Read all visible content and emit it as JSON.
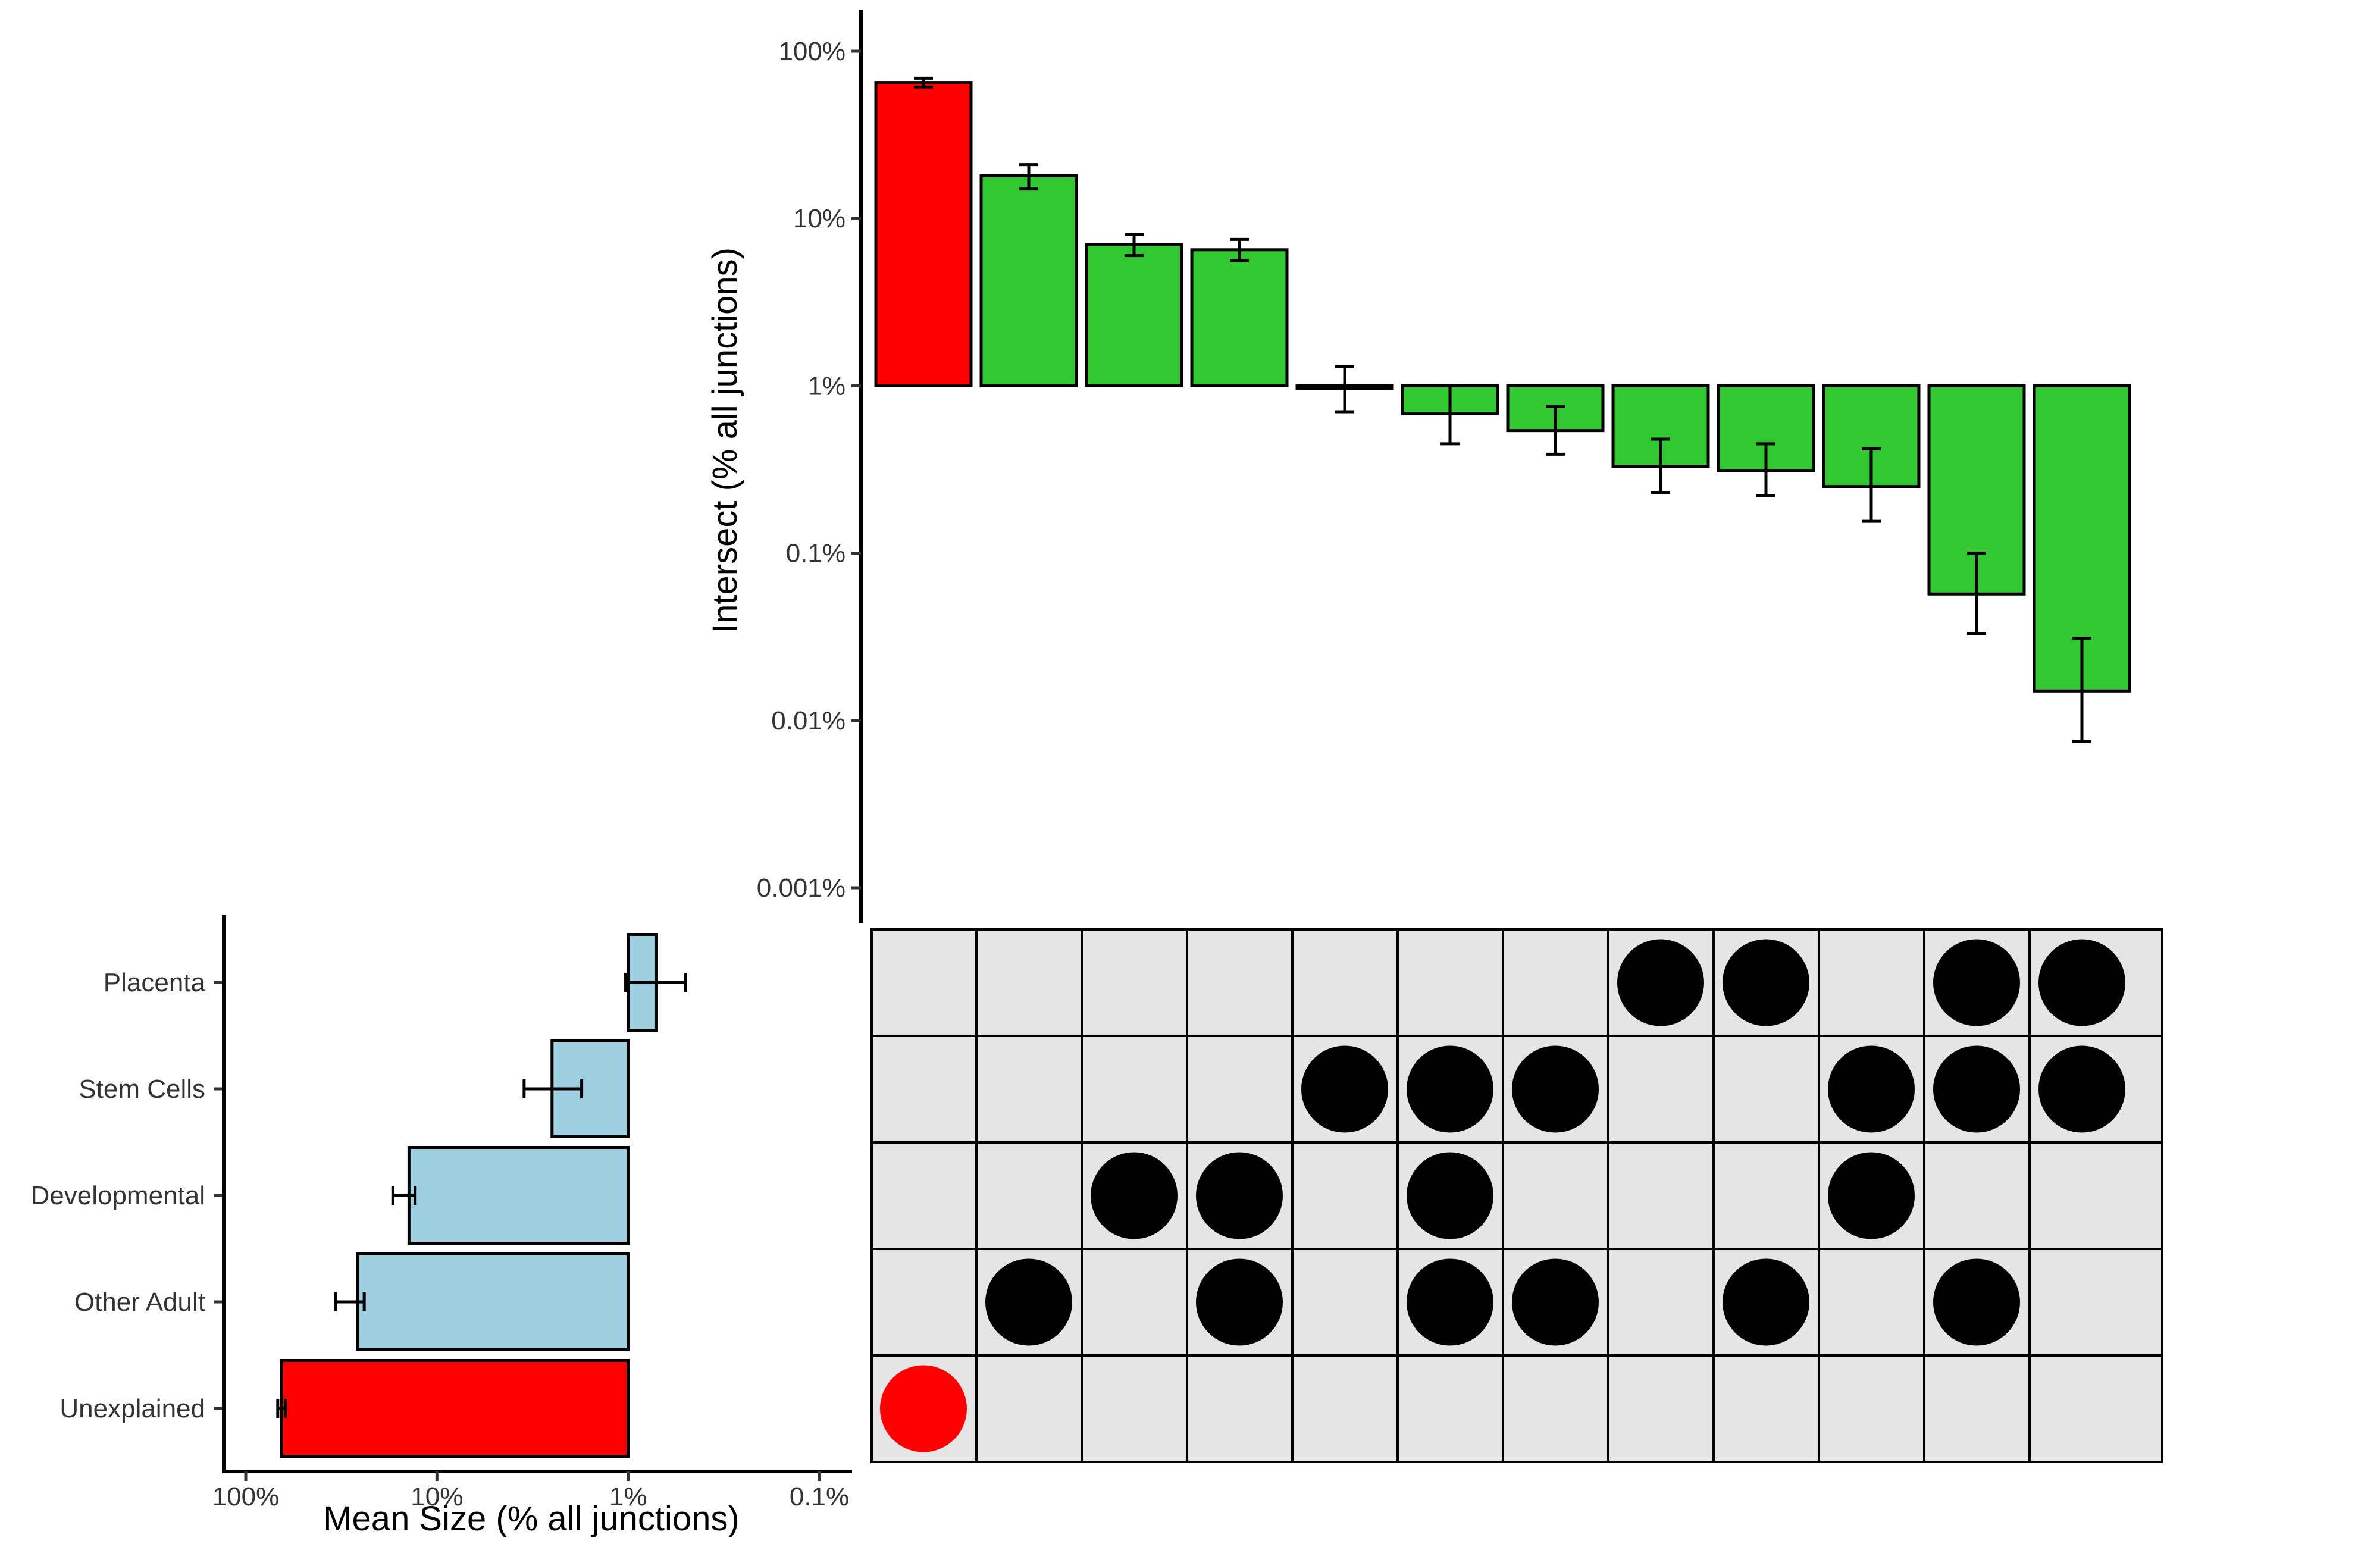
{
  "chart_data": [
    {
      "type": "bar",
      "name": "intersection-sizes",
      "ylabel": "Intersect (% all junctions)",
      "xlabel": "",
      "y_scale": "log10",
      "ylim": [
        0.001,
        100
      ],
      "y_ticks": [
        100,
        10,
        1,
        0.1,
        0.01,
        0.001
      ],
      "y_tick_labels": [
        "100%",
        "10%",
        "1%",
        "0.1%",
        "0.01%",
        "0.001%"
      ],
      "baseline": 1,
      "bars": [
        {
          "value": 65,
          "err_low": 61,
          "err_high": 69,
          "color": "#ff0000",
          "members": [
            "Unexplained"
          ]
        },
        {
          "value": 18,
          "err_low": 15,
          "err_high": 21,
          "color": "#32c832",
          "members": [
            "Other Adult"
          ]
        },
        {
          "value": 7,
          "err_low": 6,
          "err_high": 8,
          "color": "#32c832",
          "members": [
            "Developmental"
          ]
        },
        {
          "value": 6.5,
          "err_low": 5.6,
          "err_high": 7.5,
          "color": "#32c832",
          "members": [
            "Developmental",
            "Other Adult"
          ]
        },
        {
          "value": 0.96,
          "err_low": 0.7,
          "err_high": 1.3,
          "color": "#32c832",
          "members": [
            "Stem Cells"
          ]
        },
        {
          "value": 0.68,
          "err_low": 0.45,
          "err_high": 1.0,
          "color": "#32c832",
          "members": [
            "Stem Cells",
            "Developmental",
            "Other Adult"
          ]
        },
        {
          "value": 0.54,
          "err_low": 0.39,
          "err_high": 0.75,
          "color": "#32c832",
          "members": [
            "Stem Cells",
            "Other Adult"
          ]
        },
        {
          "value": 0.33,
          "err_low": 0.23,
          "err_high": 0.48,
          "color": "#32c832",
          "members": [
            "Placenta"
          ]
        },
        {
          "value": 0.31,
          "err_low": 0.22,
          "err_high": 0.45,
          "color": "#32c832",
          "members": [
            "Placenta",
            "Other Adult"
          ]
        },
        {
          "value": 0.25,
          "err_low": 0.155,
          "err_high": 0.42,
          "color": "#32c832",
          "members": [
            "Stem Cells",
            "Developmental"
          ]
        },
        {
          "value": 0.057,
          "err_low": 0.033,
          "err_high": 0.1,
          "color": "#32c832",
          "members": [
            "Placenta",
            "Stem Cells",
            "Other Adult"
          ]
        },
        {
          "value": 0.015,
          "err_low": 0.0075,
          "err_high": 0.031,
          "color": "#32c832",
          "members": [
            "Placenta",
            "Stem Cells"
          ]
        }
      ]
    },
    {
      "type": "bar",
      "orientation": "horizontal",
      "name": "set-sizes",
      "xlabel": "Mean Size (% all junctions)",
      "ylabel": "",
      "x_scale": "log10",
      "x_reversed": true,
      "xlim": [
        150,
        0.075
      ],
      "x_ticks": [
        100,
        10,
        1,
        0.1
      ],
      "x_tick_labels": [
        "100%",
        "10%",
        "1%",
        "0.1%"
      ],
      "baseline": 1,
      "categories": [
        "Placenta",
        "Stem Cells",
        "Developmental",
        "Other Adult",
        "Unexplained"
      ],
      "values": [
        0.71,
        2.5,
        14,
        26,
        65
      ],
      "err_low": [
        0.5,
        1.75,
        13,
        24,
        62
      ],
      "err_high": [
        1.03,
        3.5,
        17,
        34,
        68
      ],
      "colors": [
        "#9ecfe0",
        "#9ecfe0",
        "#9ecfe0",
        "#9ecfe0",
        "#ff0000"
      ]
    }
  ],
  "matrix": {
    "rows": [
      "Placenta",
      "Stem Cells",
      "Developmental",
      "Other Adult",
      "Unexplained"
    ],
    "cell_color": "#e5e5e5",
    "dot_color": "#000000",
    "unexplained_dot_color": "#ff0000"
  }
}
